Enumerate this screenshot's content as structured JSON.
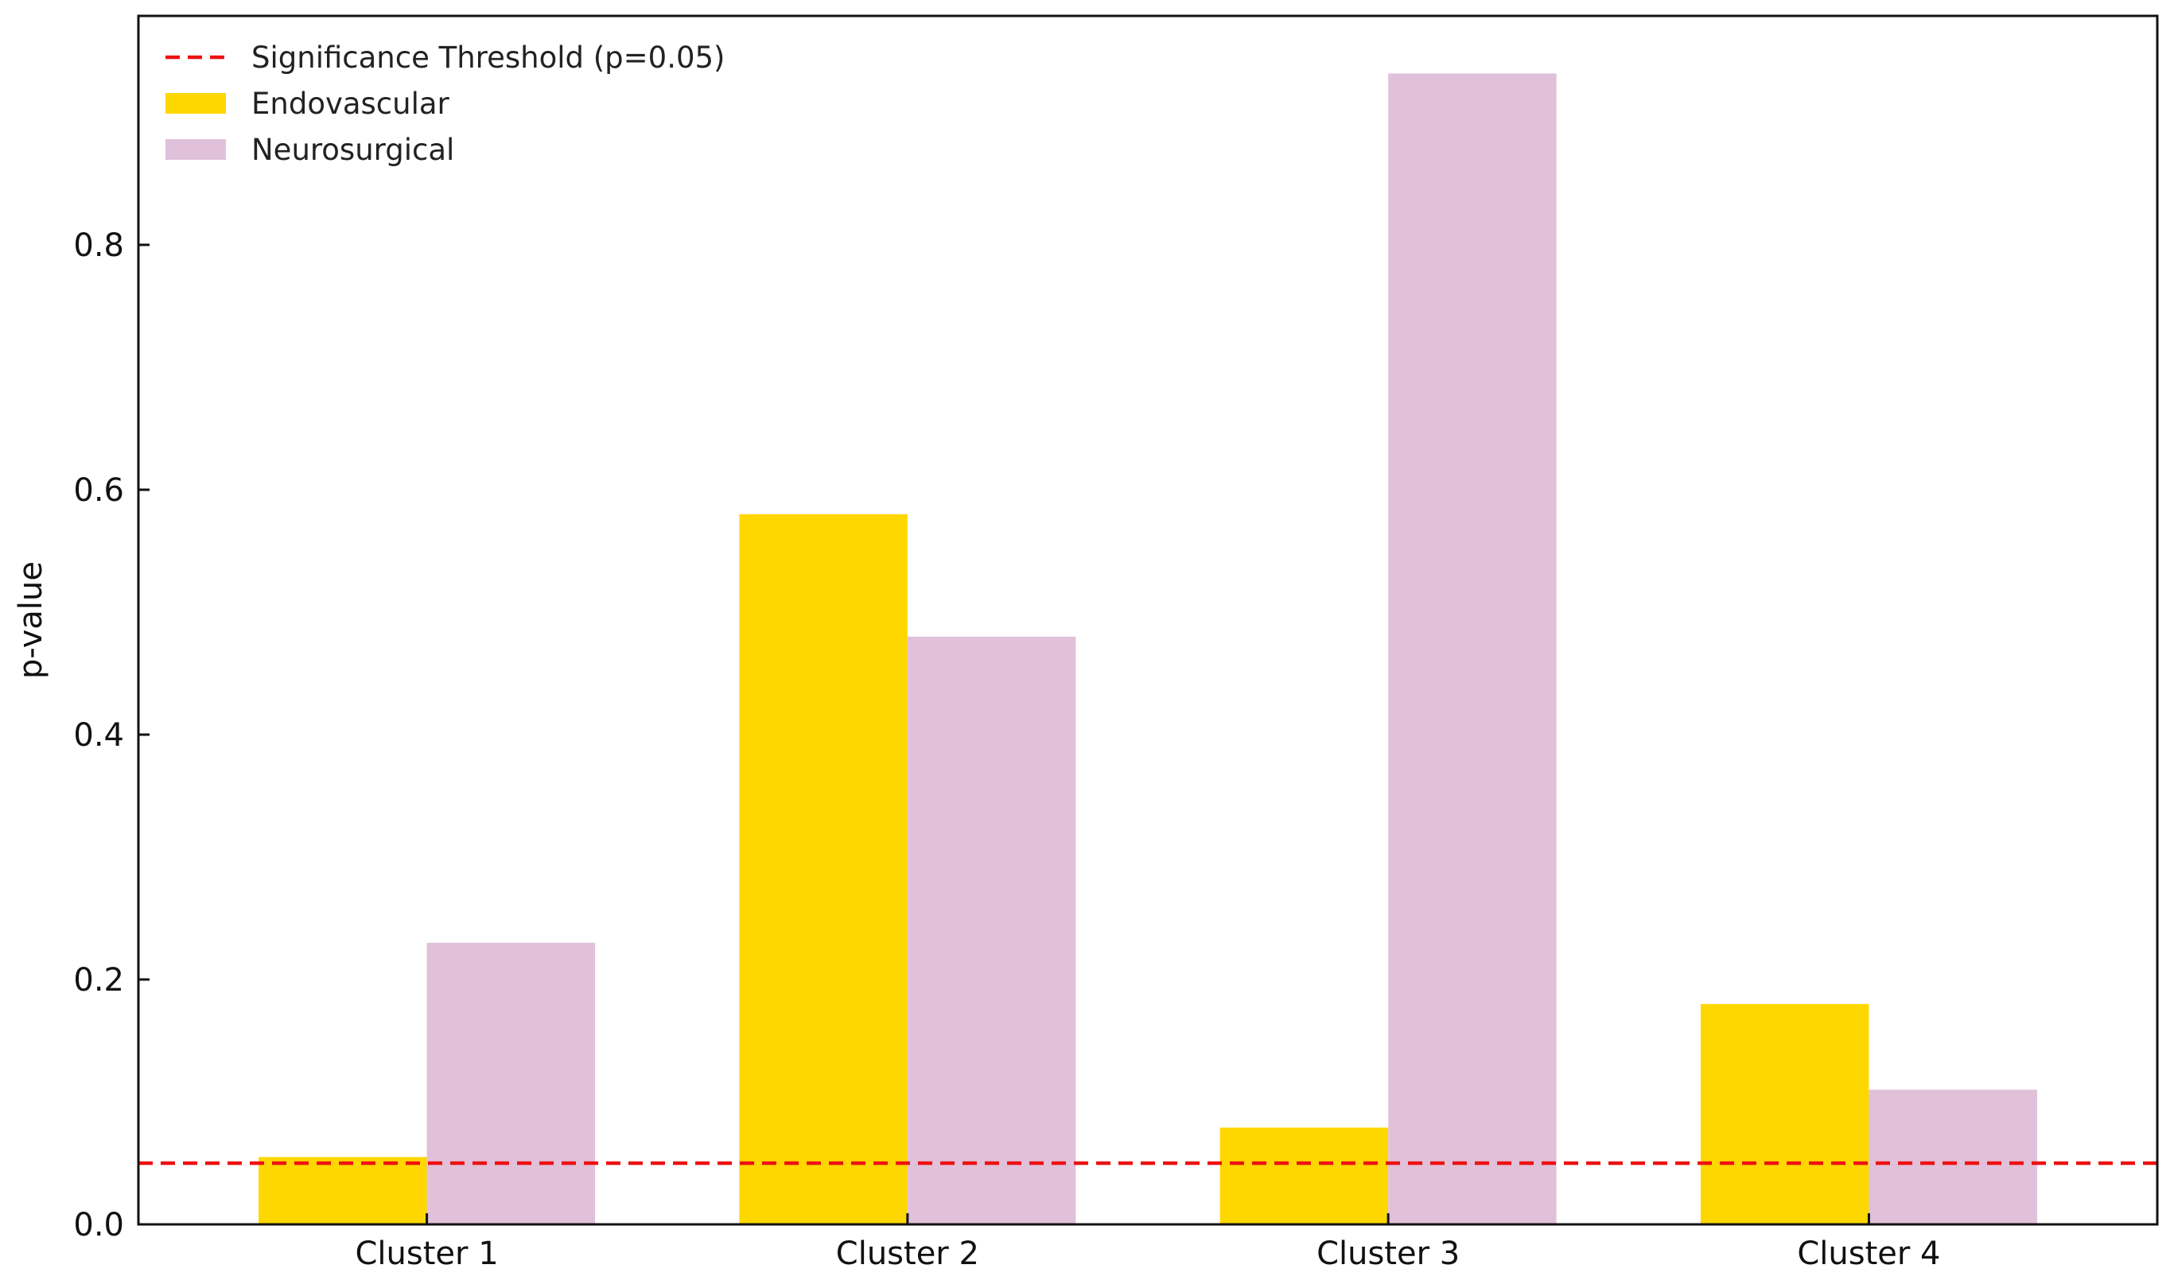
{
  "chart_data": {
    "type": "bar",
    "categories": [
      "Cluster 1",
      "Cluster 2",
      "Cluster 3",
      "Cluster 4"
    ],
    "series": [
      {
        "name": "Endovascular",
        "values": [
          0.055,
          0.58,
          0.079,
          0.18
        ],
        "color": "#FFD700"
      },
      {
        "name": "Neurosurgical",
        "values": [
          0.23,
          0.48,
          0.94,
          0.11
        ],
        "color": "#E0C1D9"
      }
    ],
    "threshold": {
      "name": "Significance Threshold (p=0.05)",
      "value": 0.05,
      "color": "#EE1111",
      "style": "dashed"
    },
    "title": "",
    "xlabel": "",
    "ylabel": "p-value",
    "ylim": [
      0,
      0.987
    ],
    "yticks": [
      0.0,
      0.2,
      0.4,
      0.6,
      0.8
    ],
    "ytick_labels": [
      "0.0",
      "0.2",
      "0.4",
      "0.6",
      "0.8"
    ],
    "grid": false,
    "legend_position": "top-left"
  }
}
